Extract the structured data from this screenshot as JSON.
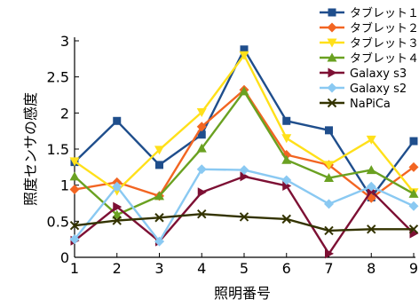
{
  "chart_data": {
    "type": "line",
    "xlabel": "照明番号",
    "ylabel": "照度センサの感度",
    "x": [
      1,
      2,
      3,
      4,
      5,
      6,
      7,
      8,
      9
    ],
    "xlim": [
      1,
      9
    ],
    "ylim": [
      0,
      3
    ],
    "yticks": [
      "0",
      "0.5",
      "1",
      "1.5",
      "2",
      "2.5",
      "3"
    ],
    "xticks": [
      "1",
      "2",
      "3",
      "4",
      "5",
      "6",
      "7",
      "8",
      "9"
    ],
    "legend_position": "top-right",
    "series": [
      {
        "name": "タブレット１",
        "color": "#1f4e8c",
        "marker": "square",
        "values": [
          1.32,
          1.89,
          1.28,
          1.7,
          2.88,
          1.89,
          1.76,
          0.83,
          1.61
        ]
      },
      {
        "name": "タブレット２",
        "color": "#f26522",
        "marker": "diamond",
        "values": [
          0.94,
          1.04,
          0.85,
          1.81,
          2.32,
          1.42,
          1.28,
          0.82,
          1.25
        ]
      },
      {
        "name": "タブレット３",
        "color": "#ffe01a",
        "marker": "triangle-down",
        "values": [
          1.33,
          0.92,
          1.49,
          2.01,
          2.8,
          1.65,
          1.28,
          1.63,
          0.9
        ]
      },
      {
        "name": "タブレット４",
        "color": "#6aa121",
        "marker": "triangle-up",
        "values": [
          1.12,
          0.59,
          0.85,
          1.51,
          2.3,
          1.35,
          1.1,
          1.21,
          0.88
        ]
      },
      {
        "name": "Galaxy s3",
        "color": "#7d1034",
        "marker": "triangle-right",
        "values": [
          0.23,
          0.7,
          0.22,
          0.9,
          1.12,
          0.99,
          0.05,
          0.92,
          0.33
        ]
      },
      {
        "name": "Galaxy s2",
        "color": "#8ac9f2",
        "marker": "diamond",
        "values": [
          0.25,
          0.98,
          0.22,
          1.22,
          1.21,
          1.07,
          0.74,
          0.98,
          0.71
        ]
      },
      {
        "name": "NaPiCa",
        "color": "#333300",
        "marker": "x",
        "values": [
          0.44,
          0.51,
          0.55,
          0.6,
          0.56,
          0.53,
          0.37,
          0.39,
          0.39
        ]
      }
    ]
  }
}
